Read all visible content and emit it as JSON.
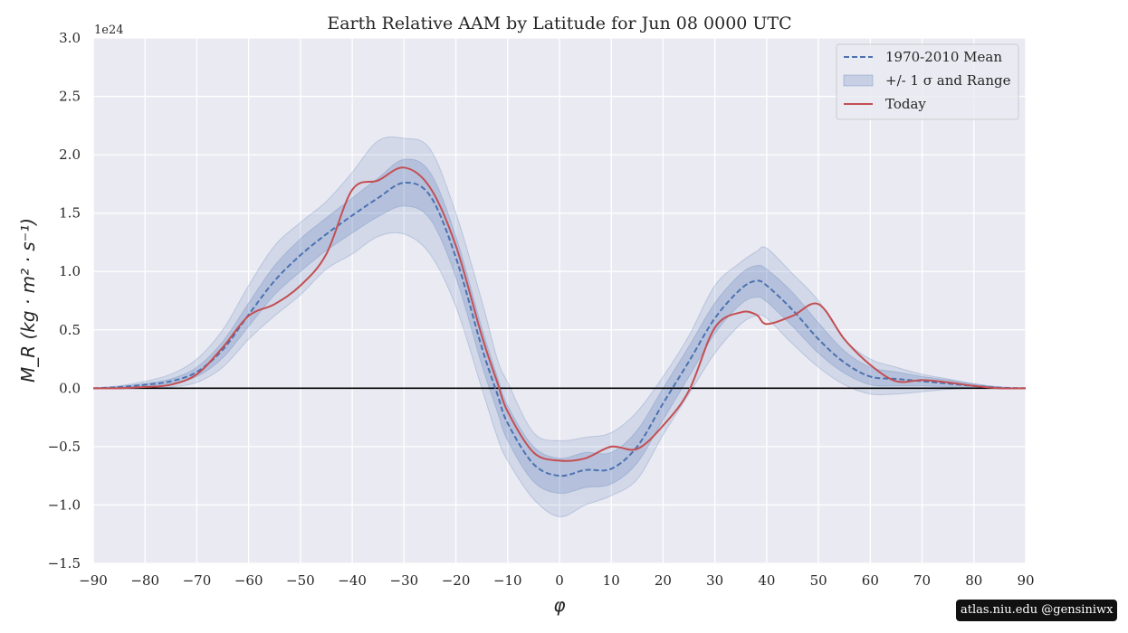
{
  "chart_data": {
    "type": "line",
    "title": "Earth Relative AAM by Latitude for Jun 08 0000 UTC",
    "xlabel": "φ",
    "ylabel": "M_R (kg · m² · s⁻¹)",
    "offset_text": "1e24",
    "xlim": [
      -90,
      90
    ],
    "ylim": [
      -1.5,
      3.0
    ],
    "xticks": [
      -90,
      -80,
      -70,
      -60,
      -50,
      -40,
      -30,
      -20,
      -10,
      0,
      10,
      20,
      30,
      40,
      50,
      60,
      70,
      80,
      90
    ],
    "xtick_labels": [
      "−90",
      "−80",
      "−70",
      "−60",
      "−50",
      "−40",
      "−30",
      "−20",
      "−10",
      "0",
      "10",
      "20",
      "30",
      "40",
      "50",
      "60",
      "70",
      "80",
      "90"
    ],
    "yticks": [
      -1.5,
      -1.0,
      -0.5,
      0.0,
      0.5,
      1.0,
      1.5,
      2.0,
      2.5,
      3.0
    ],
    "ytick_labels": [
      "−1.5",
      "−1.0",
      "−0.5",
      "0.0",
      "0.5",
      "1.0",
      "1.5",
      "2.0",
      "2.5",
      "3.0"
    ],
    "grid": true,
    "legend_position": "top-right",
    "x": [
      -90,
      -85,
      -80,
      -75,
      -70,
      -65,
      -60,
      -55,
      -50,
      -45,
      -40,
      -35,
      -30,
      -25,
      -20,
      -15,
      -12,
      -10,
      -5,
      0,
      5,
      10,
      15,
      20,
      25,
      30,
      35,
      38,
      40,
      45,
      50,
      55,
      60,
      65,
      70,
      75,
      80,
      85,
      90
    ],
    "series": [
      {
        "name": "1970-2010 Mean",
        "style": "dashed",
        "color": "#4c72b0",
        "values": [
          0,
          0.01,
          0.03,
          0.06,
          0.14,
          0.33,
          0.63,
          0.92,
          1.14,
          1.32,
          1.48,
          1.63,
          1.76,
          1.65,
          1.12,
          0.35,
          -0.05,
          -0.3,
          -0.65,
          -0.75,
          -0.7,
          -0.69,
          -0.5,
          -0.13,
          0.23,
          0.6,
          0.85,
          0.92,
          0.88,
          0.67,
          0.42,
          0.22,
          0.1,
          0.08,
          0.06,
          0.04,
          0.02,
          0.005,
          0
        ]
      },
      {
        "name": "Today",
        "style": "solid",
        "color": "#c44e52",
        "values": [
          0,
          0.0,
          0.01,
          0.03,
          0.12,
          0.35,
          0.62,
          0.72,
          0.88,
          1.15,
          1.7,
          1.78,
          1.89,
          1.72,
          1.22,
          0.45,
          0.05,
          -0.2,
          -0.55,
          -0.62,
          -0.6,
          -0.5,
          -0.52,
          -0.32,
          -0.02,
          0.52,
          0.65,
          0.63,
          0.55,
          0.62,
          0.72,
          0.42,
          0.2,
          0.06,
          0.07,
          0.05,
          0.02,
          0.0,
          0
        ]
      }
    ],
    "bands": [
      {
        "name": "+/- 1 σ and Range",
        "kind": "range",
        "color": "#4c72b0",
        "lower": [
          0,
          0.0,
          0.0,
          0.01,
          0.05,
          0.18,
          0.42,
          0.62,
          0.8,
          1.02,
          1.15,
          1.3,
          1.32,
          1.15,
          0.7,
          0.0,
          -0.42,
          -0.62,
          -0.95,
          -1.1,
          -1.0,
          -0.92,
          -0.78,
          -0.4,
          -0.05,
          0.3,
          0.55,
          0.62,
          0.6,
          0.38,
          0.18,
          0.03,
          -0.05,
          -0.05,
          -0.03,
          -0.01,
          0.0,
          0.0,
          0
        ],
        "upper": [
          0,
          0.02,
          0.06,
          0.12,
          0.25,
          0.5,
          0.88,
          1.22,
          1.42,
          1.6,
          1.85,
          2.12,
          2.14,
          2.05,
          1.5,
          0.75,
          0.25,
          0.05,
          -0.38,
          -0.45,
          -0.42,
          -0.38,
          -0.2,
          0.1,
          0.45,
          0.88,
          1.08,
          1.17,
          1.2,
          0.98,
          0.75,
          0.42,
          0.25,
          0.18,
          0.12,
          0.08,
          0.04,
          0.01,
          0
        ]
      },
      {
        "name": "+/- 1 σ",
        "kind": "sigma",
        "color": "#4c72b0",
        "lower": [
          0,
          0.005,
          0.02,
          0.04,
          0.1,
          0.26,
          0.53,
          0.8,
          1.0,
          1.18,
          1.33,
          1.47,
          1.56,
          1.45,
          0.95,
          0.2,
          -0.2,
          -0.45,
          -0.8,
          -0.9,
          -0.85,
          -0.82,
          -0.64,
          -0.27,
          0.1,
          0.47,
          0.72,
          0.78,
          0.74,
          0.53,
          0.3,
          0.13,
          0.03,
          0.02,
          0.02,
          0.01,
          0.005,
          0.0,
          0
        ],
        "upper": [
          0,
          0.015,
          0.04,
          0.08,
          0.18,
          0.4,
          0.73,
          1.05,
          1.28,
          1.46,
          1.63,
          1.8,
          1.96,
          1.85,
          1.3,
          0.52,
          0.1,
          -0.15,
          -0.5,
          -0.6,
          -0.55,
          -0.55,
          -0.36,
          0.0,
          0.36,
          0.73,
          0.98,
          1.05,
          1.02,
          0.82,
          0.56,
          0.32,
          0.18,
          0.14,
          0.1,
          0.07,
          0.035,
          0.01,
          0
        ]
      }
    ],
    "legend": [
      {
        "label": "1970-2010 Mean",
        "kind": "dashed-line",
        "color": "#4c72b0"
      },
      {
        "label": "+/- 1 σ and Range",
        "kind": "band",
        "color": "#4c72b0"
      },
      {
        "label": "Today",
        "kind": "line",
        "color": "#c44e52"
      }
    ]
  },
  "credit": "atlas.niu.edu  @gensiniwx"
}
